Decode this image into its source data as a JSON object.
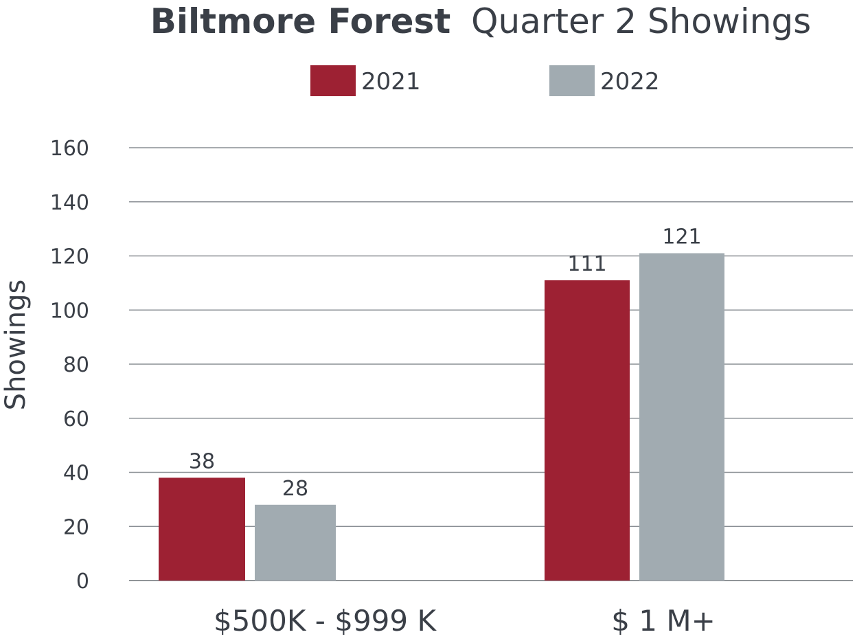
{
  "chart_data": {
    "type": "bar",
    "title_bold": "Biltmore Forest",
    "title_rest": "Quarter 2 Showings",
    "xlabel": "",
    "ylabel": "Showings",
    "ylim": [
      0,
      160
    ],
    "yticks": [
      0,
      20,
      40,
      60,
      80,
      100,
      120,
      140,
      160
    ],
    "categories": [
      "$500K - $999 K",
      "$ 1 M+"
    ],
    "series": [
      {
        "name": "2021",
        "color": "#9d2133",
        "values": [
          38,
          111
        ]
      },
      {
        "name": "2022",
        "color": "#a1abb1",
        "values": [
          28,
          121
        ]
      }
    ],
    "legend": "top",
    "grid": true
  }
}
